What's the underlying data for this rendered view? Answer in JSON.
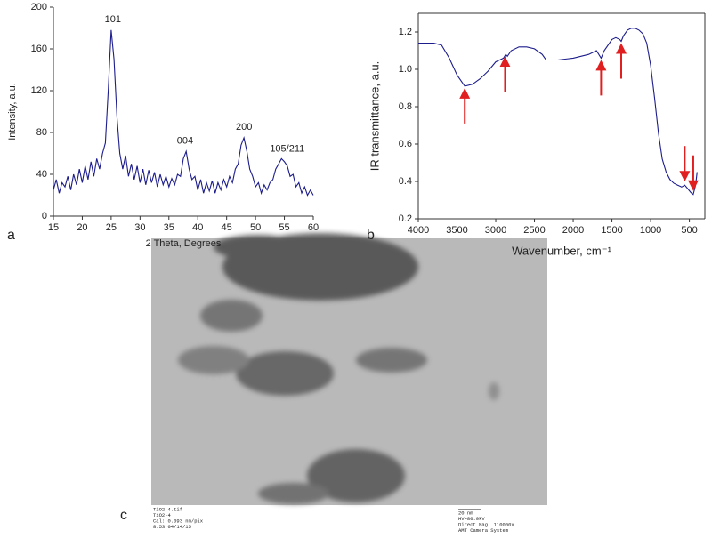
{
  "chart_data": [
    {
      "type": "line",
      "x_label": "2 Theta, Degrees",
      "y_label": "Intensity, a.u.",
      "color": "#1c1c8c",
      "x": [
        15,
        15.5,
        16,
        16.5,
        17,
        17.5,
        18,
        18.5,
        19,
        19.5,
        20,
        20.5,
        21,
        21.5,
        22,
        22.5,
        23,
        23.5,
        24,
        24.5,
        25,
        25.5,
        26,
        26.5,
        27,
        27.5,
        28,
        28.5,
        29,
        29.5,
        30,
        30.5,
        31,
        31.5,
        32,
        32.5,
        33,
        33.5,
        34,
        34.5,
        35,
        35.5,
        36,
        36.5,
        37,
        37.5,
        38,
        38.5,
        39,
        39.5,
        40,
        40.5,
        41,
        41.5,
        42,
        42.5,
        43,
        43.5,
        44,
        44.5,
        45,
        45.5,
        46,
        46.5,
        47,
        47.5,
        48,
        48.5,
        49,
        49.5,
        50,
        50.5,
        51,
        51.5,
        52,
        52.5,
        53,
        53.5,
        54,
        54.5,
        55,
        55.5,
        56,
        56.5,
        57,
        57.5,
        58,
        58.5,
        59,
        59.5,
        60
      ],
      "values": [
        25,
        35,
        22,
        32,
        28,
        38,
        25,
        40,
        30,
        45,
        32,
        48,
        35,
        52,
        38,
        55,
        45,
        60,
        70,
        120,
        178,
        150,
        95,
        60,
        45,
        58,
        38,
        50,
        35,
        48,
        32,
        45,
        30,
        44,
        32,
        42,
        28,
        40,
        30,
        38,
        28,
        36,
        30,
        40,
        38,
        55,
        62,
        45,
        35,
        38,
        25,
        35,
        22,
        32,
        24,
        34,
        22,
        32,
        25,
        35,
        28,
        38,
        32,
        45,
        50,
        68,
        75,
        62,
        45,
        38,
        28,
        32,
        22,
        30,
        25,
        32,
        35,
        45,
        50,
        55,
        52,
        48,
        38,
        40,
        28,
        32,
        22,
        28,
        20,
        25,
        20
      ],
      "xlim": [
        15,
        60
      ],
      "ylim": [
        0,
        200
      ],
      "xticks": [
        15,
        20,
        25,
        30,
        35,
        40,
        45,
        50,
        55,
        60
      ],
      "yticks": [
        0,
        40,
        80,
        120,
        160,
        200
      ],
      "annotations": [
        {
          "x": 25.3,
          "y": 188,
          "text": "101"
        },
        {
          "x": 37.8,
          "y": 72,
          "text": "004"
        },
        {
          "x": 48,
          "y": 85,
          "text": "200"
        },
        {
          "x": 55.5,
          "y": 64,
          "text": "105/211"
        }
      ],
      "panel": "a"
    },
    {
      "type": "line",
      "x_label": "Wavenumber, cm⁻¹",
      "y_label": "IR transmittance, a.u.",
      "color": "#1c1c8c",
      "frame": true,
      "x": [
        4000,
        3800,
        3700,
        3600,
        3500,
        3400,
        3300,
        3200,
        3100,
        3000,
        2950,
        2900,
        2870,
        2850,
        2800,
        2700,
        2600,
        2500,
        2400,
        2350,
        2300,
        2200,
        2000,
        1800,
        1700,
        1640,
        1600,
        1500,
        1450,
        1400,
        1380,
        1350,
        1300,
        1250,
        1200,
        1150,
        1100,
        1050,
        1000,
        950,
        900,
        850,
        800,
        750,
        700,
        650,
        600,
        560,
        520,
        480,
        450,
        420,
        400
      ],
      "values": [
        1.14,
        1.14,
        1.13,
        1.06,
        0.97,
        0.91,
        0.92,
        0.95,
        0.99,
        1.04,
        1.05,
        1.06,
        1.08,
        1.07,
        1.1,
        1.12,
        1.12,
        1.11,
        1.08,
        1.05,
        1.05,
        1.05,
        1.06,
        1.08,
        1.1,
        1.06,
        1.1,
        1.16,
        1.17,
        1.16,
        1.15,
        1.18,
        1.21,
        1.22,
        1.22,
        1.21,
        1.19,
        1.14,
        1.02,
        0.85,
        0.66,
        0.52,
        0.45,
        0.41,
        0.39,
        0.38,
        0.37,
        0.38,
        0.36,
        0.34,
        0.33,
        0.38,
        0.45
      ],
      "xlim": [
        4000,
        300
      ],
      "ylim": [
        0.2,
        1.3
      ],
      "xticks": [
        4000,
        3500,
        3000,
        2500,
        2000,
        1500,
        1000,
        500
      ],
      "yticks": [
        0.2,
        0.4,
        0.6,
        0.8,
        {
          "value": 1,
          "label": "1.0"
        },
        1.2
      ],
      "arrows": [
        {
          "x": 3400,
          "direction": "up"
        },
        {
          "x": 2880,
          "direction": "up"
        },
        {
          "x": 1640,
          "direction": "up"
        },
        {
          "x": 1380,
          "direction": "up"
        },
        {
          "x": 560,
          "direction": "down"
        },
        {
          "x": 450,
          "direction": "down"
        }
      ],
      "arrow_color": "#e02020",
      "panel": "b"
    }
  ],
  "tem": {
    "panel": "c",
    "caption_left": [
      "TiO2-4.tif",
      "TiO2-4",
      "Cal: 0.093 nm/pix",
      "8:53 04/14/15"
    ],
    "caption_right": [
      "20 nm",
      "HV=80.0kV",
      "Direct Mag: 110000x",
      "AMT Camera System"
    ]
  }
}
